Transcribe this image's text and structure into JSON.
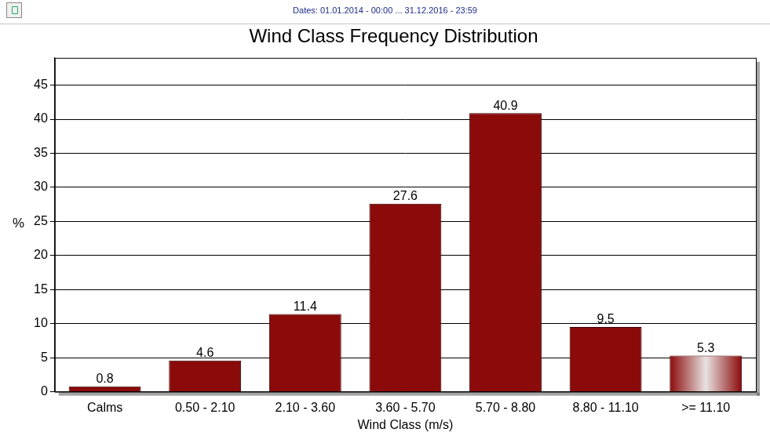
{
  "chart_data": {
    "type": "bar",
    "title": "Wind Class Frequency Distribution",
    "subtitle": "Dates: 01.01.2014 - 00:00 ... 31.12.2016 - 23:59",
    "xlabel": "Wind Class (m/s)",
    "ylabel": "%",
    "categories": [
      "Calms",
      "0.50 - 2.10",
      "2.10 - 3.60",
      "3.60 - 5.70",
      "5.70 - 8.80",
      "8.80 - 11.10",
      ">= 11.10"
    ],
    "values": [
      0.8,
      4.6,
      11.4,
      27.6,
      40.9,
      9.5,
      5.3
    ],
    "color": "#8b0a0a",
    "ylim": [
      0,
      49
    ],
    "yticks": [
      0,
      5,
      10,
      15,
      20,
      25,
      30,
      35,
      40,
      45
    ],
    "grid": true,
    "data_labels": true
  }
}
